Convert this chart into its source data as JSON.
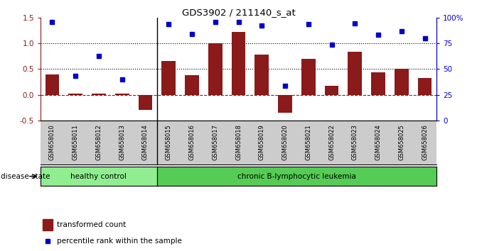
{
  "title": "GDS3902 / 211140_s_at",
  "samples": [
    "GSM658010",
    "GSM658011",
    "GSM658012",
    "GSM658013",
    "GSM658014",
    "GSM658015",
    "GSM658016",
    "GSM658017",
    "GSM658018",
    "GSM658019",
    "GSM658020",
    "GSM658021",
    "GSM658022",
    "GSM658023",
    "GSM658024",
    "GSM658025",
    "GSM658026"
  ],
  "bar_values": [
    0.4,
    0.02,
    0.02,
    0.02,
    -0.3,
    0.65,
    0.38,
    1.0,
    1.22,
    0.78,
    -0.35,
    0.7,
    0.17,
    0.83,
    0.44,
    0.5,
    0.33
  ],
  "dot_values": [
    1.42,
    0.37,
    0.75,
    0.3,
    null,
    1.37,
    1.18,
    1.41,
    1.41,
    1.35,
    0.18,
    1.37,
    0.97,
    1.38,
    1.17,
    1.23,
    1.1
  ],
  "bar_color": "#8B1A1A",
  "dot_color": "#0000CC",
  "healthy_count": 5,
  "ylim_left": [
    -0.5,
    1.5
  ],
  "ylim_right": [
    0,
    100
  ],
  "yticks_left": [
    -0.5,
    0.0,
    0.5,
    1.0,
    1.5
  ],
  "yticks_right": [
    0,
    25,
    50,
    75,
    100
  ],
  "ytick_labels_right": [
    "0",
    "25",
    "50",
    "75",
    "100%"
  ],
  "hlines": [
    0.5,
    1.0
  ],
  "zero_line_color": "#8B1A1A",
  "group_labels": [
    "healthy control",
    "chronic B-lymphocytic leukemia"
  ],
  "group_color_healthy": "#90EE90",
  "group_color_leuk": "#55CC55",
  "disease_state_label": "disease state",
  "legend_bar_label": "transformed count",
  "legend_dot_label": "percentile rank within the sample",
  "background_color": "#ffffff",
  "tick_bg_color": "#cccccc",
  "separator_color": "#000000"
}
